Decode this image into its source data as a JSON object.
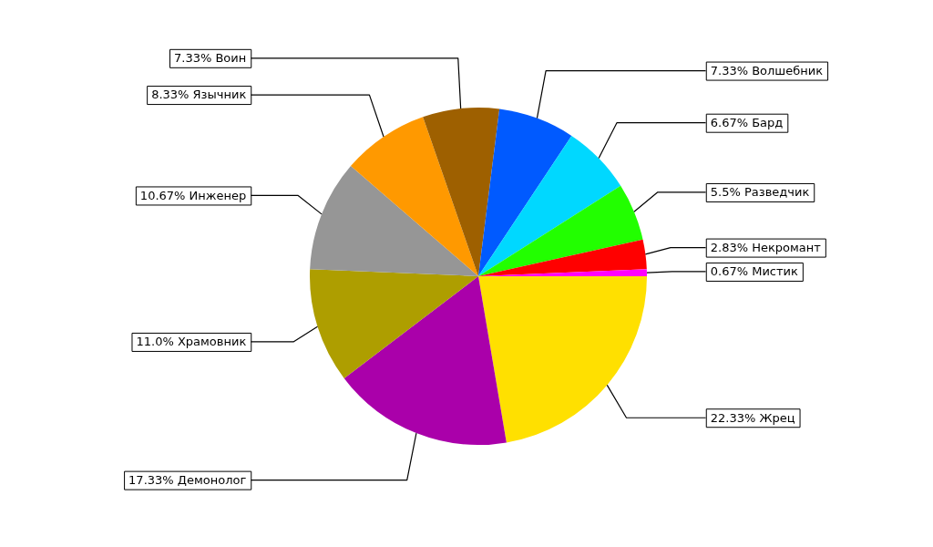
{
  "chart_data": {
    "type": "pie",
    "categories": [
      "Жрец",
      "Демонолог",
      "Храмовник",
      "Инженер",
      "Язычник",
      "Воин",
      "Волшебник",
      "Бард",
      "Разведчик",
      "Некромант",
      "Мистик"
    ],
    "values": [
      22.33,
      17.33,
      11.0,
      10.67,
      8.33,
      7.33,
      7.33,
      6.67,
      5.5,
      2.83,
      0.67
    ],
    "value_labels": [
      "22.33%",
      "17.33%",
      "11.0%",
      "10.67%",
      "8.33%",
      "7.33%",
      "7.33%",
      "6.67%",
      "5.5%",
      "2.83%",
      "0.67%"
    ],
    "colors": [
      "#ffe000",
      "#aa00aa",
      "#ae9e00",
      "#969696",
      "#ff9900",
      "#9e6000",
      "#005aff",
      "#00d8ff",
      "#22ff00",
      "#ff0000",
      "#ff00ff"
    ],
    "legend": false
  }
}
